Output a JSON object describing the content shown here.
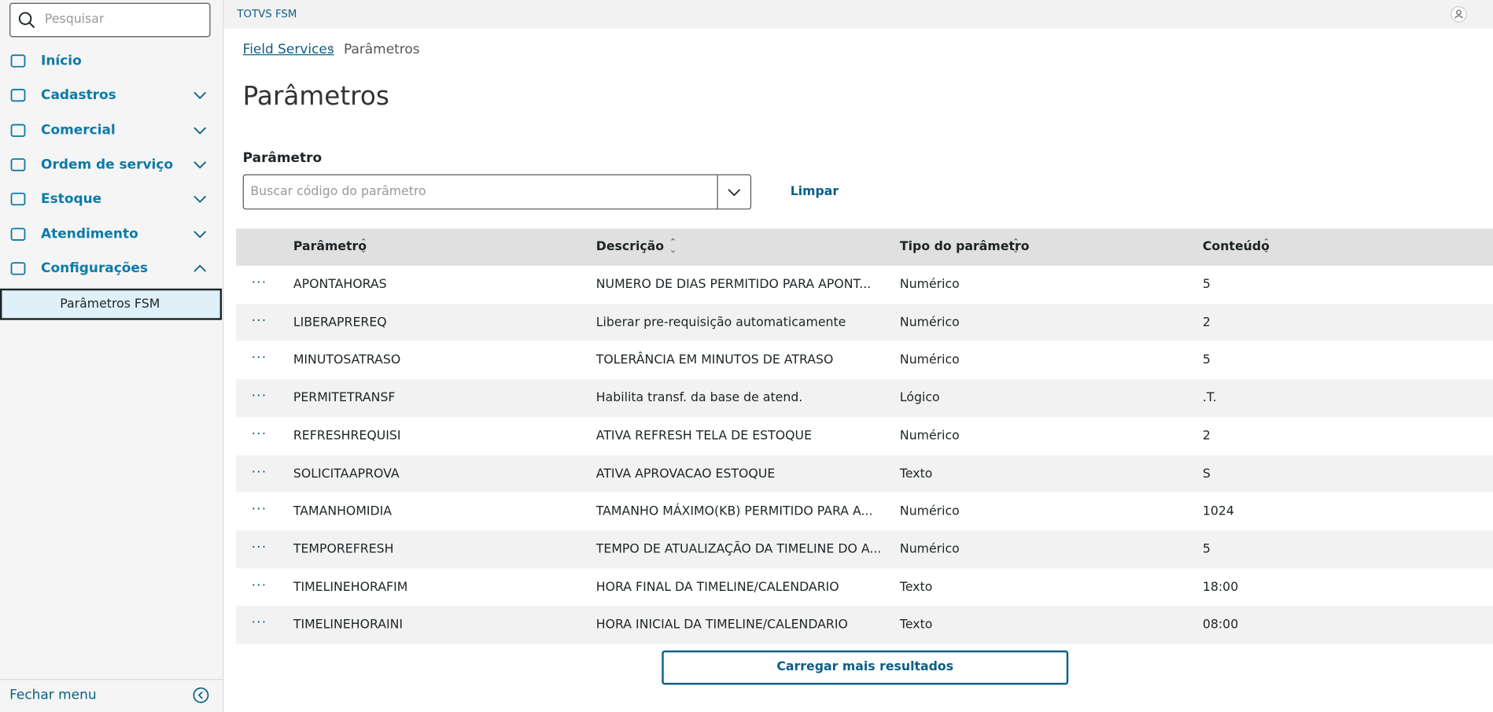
{
  "sidebar": {
    "search_placeholder": "Pesquisar",
    "menu": [
      "Início",
      "Cadastros",
      "Comercial",
      "Ordem de serviço",
      "Estoque",
      "Atendimento",
      "Configurações"
    ],
    "submenu": [
      "Parâmetros FSM"
    ],
    "close_menu": "Fechar menu"
  },
  "header": {
    "brand": "TOTVS FSM"
  },
  "breadcrumb": [
    "Field Services",
    "Parâmetros"
  ],
  "page_title": "Parâmetros",
  "filter": {
    "label": "Parâmetro",
    "placeholder": "Buscar código do parâmetro",
    "clear": "Limpar"
  },
  "table": {
    "columns": [
      "Parâmetro",
      "Descrição",
      "Tipo do parâmetro",
      "Conteúdo"
    ],
    "rows": [
      [
        "APONTAHORAS",
        "NUMERO DE DIAS PERMITIDO PARA APONT...",
        "Numérico",
        "5"
      ],
      [
        "LIBERAPREREQ",
        "Liberar pre-requisição automaticamente",
        "Numérico",
        "2"
      ],
      [
        "MINUTOSATRASO",
        "TOLERÂNCIA EM MINUTOS DE ATRASO",
        "Numérico",
        "5"
      ],
      [
        "PERMITETRANSF",
        "Habilita transf. da base de atend.",
        "Lógico",
        ".T."
      ],
      [
        "REFRESHREQUISI",
        "ATIVA REFRESH TELA DE ESTOQUE",
        "Numérico",
        "2"
      ],
      [
        "SOLICITAAPROVA",
        "ATIVA APROVACAO ESTOQUE",
        "Texto",
        "S"
      ],
      [
        "TAMANHOMIDIA",
        "TAMANHO MÁXIMO(KB) PERMITIDO PARA A...",
        "Numérico",
        "1024"
      ],
      [
        "TEMPOREFRESH",
        "TEMPO DE ATUALIZAÇÃO DA TIMELINE DO A...",
        "Numérico",
        "5"
      ],
      [
        "TIMELINEHORAFIM",
        "HORA FINAL DA TIMELINE/CALENDARIO",
        "Texto",
        "18:00"
      ],
      [
        "TIMELINEHORAINI",
        "HORA INICIAL DA TIMELINE/CALENDARIO",
        "Texto",
        "08:00"
      ]
    ]
  },
  "load_more": "Carregar mais resultados"
}
